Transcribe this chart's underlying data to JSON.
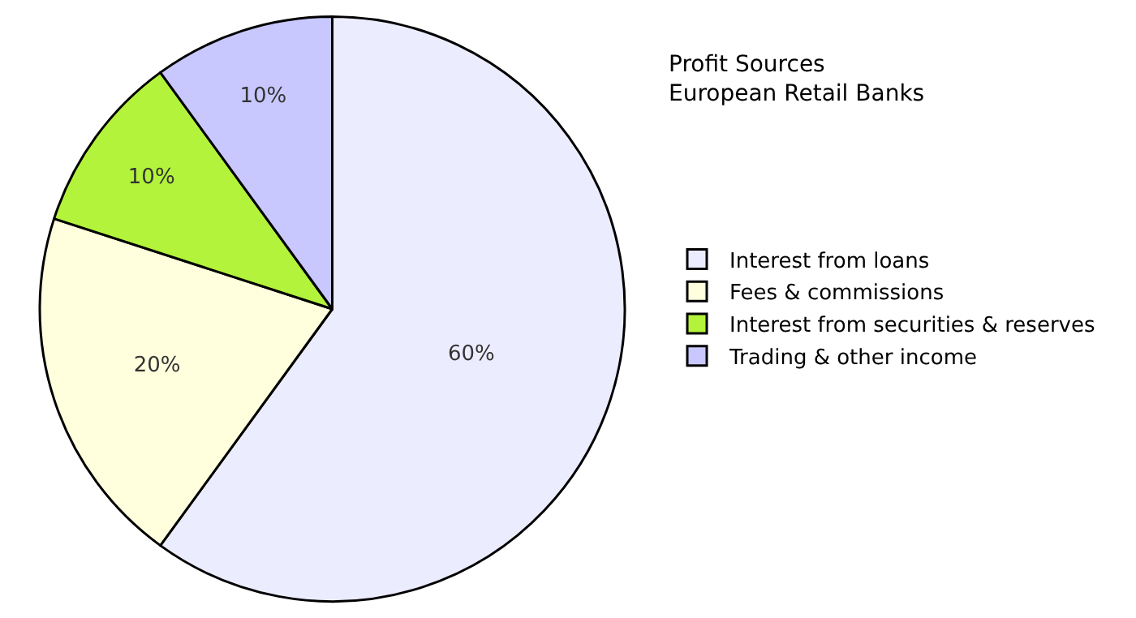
{
  "chart_data": {
    "type": "pie",
    "title": "Profit Sources\nEuropean Retail Banks",
    "categories": [
      "Interest from loans",
      "Fees & commissions",
      "Interest from securities & reserves",
      "Trading & other income"
    ],
    "values": [
      60,
      20,
      10,
      10
    ],
    "value_labels": [
      "60%",
      "20%",
      "10%",
      "10%"
    ],
    "colors": [
      "#ececff",
      "#ffffde",
      "#b3f33b",
      "#c8c8ff"
    ],
    "legend": "right"
  }
}
